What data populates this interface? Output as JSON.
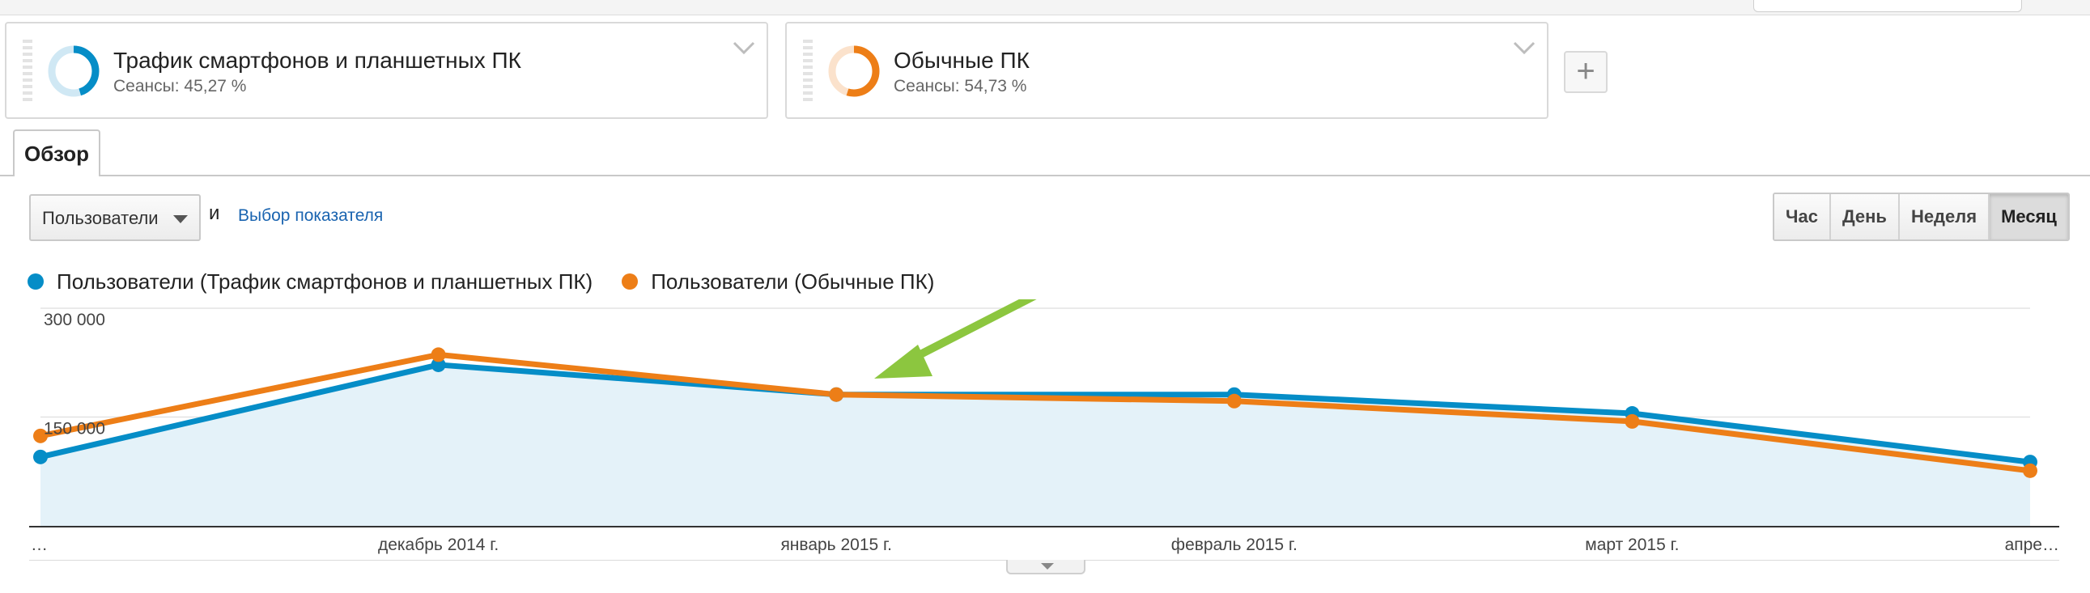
{
  "segments": [
    {
      "title": "Трафик смартфонов и планшетных ПК",
      "subtitle": "Сеансы: 45,27 %",
      "percent": 45.27,
      "color": "#058dc7",
      "track_color": "#d0e8f4"
    },
    {
      "title": "Обычные ПК",
      "subtitle": "Сеансы: 54,73 %",
      "percent": 54.73,
      "color": "#ed7e17",
      "track_color": "#fbe2cc"
    }
  ],
  "add_segment_label": "+",
  "tabs": {
    "overview": "Обзор"
  },
  "controls": {
    "metric": "Пользователи",
    "and": "и",
    "metric_link": "Выбор показателя",
    "periods": [
      "Час",
      "День",
      "Неделя",
      "Месяц"
    ],
    "active_period": "Месяц"
  },
  "icons": {
    "segment_menu": "chevron-down-icon",
    "drag": "drag-handle-icon",
    "more": "caret-down-icon"
  },
  "chart_data": {
    "type": "line",
    "x": [
      "…",
      "декабрь 2014 г.",
      "январь 2015 г.",
      "февраль 2015 г.",
      "март 2015 г.",
      "апре…"
    ],
    "series": [
      {
        "name": "Пользователи (Трафик смартфонов и планшетных ПК)",
        "color": "#058dc7",
        "values": [
          95000,
          222000,
          181000,
          181000,
          155000,
          88000
        ],
        "filled": true
      },
      {
        "name": "Пользователи (Обычные ПК)",
        "color": "#ed7e17",
        "values": [
          124000,
          236000,
          181000,
          172000,
          144000,
          76000
        ],
        "filled": false
      }
    ],
    "yticks": [
      "300 000",
      "150 000"
    ],
    "ytick_values": [
      300000,
      150000
    ],
    "ylim": [
      0,
      300000
    ],
    "grid": true,
    "legend": "top-left",
    "annotation": {
      "type": "arrow",
      "color": "#8cc63f"
    }
  }
}
